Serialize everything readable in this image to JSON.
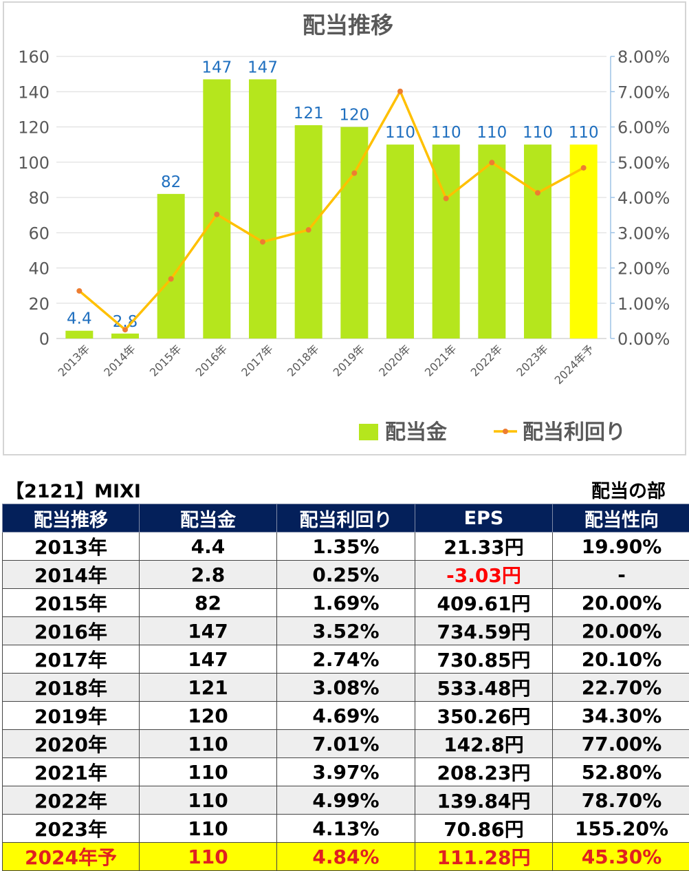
{
  "chart_data": {
    "type": "bar",
    "title": "配当推移",
    "categories": [
      "2013年",
      "2014年",
      "2015年",
      "2016年",
      "2017年",
      "2018年",
      "2019年",
      "2020年",
      "2021年",
      "2022年",
      "2023年",
      "2024年予"
    ],
    "series": [
      {
        "name": "配当金",
        "type": "bar",
        "axis": "left",
        "values": [
          4.4,
          2.8,
          82,
          147,
          147,
          121,
          120,
          110,
          110,
          110,
          110,
          110
        ],
        "labels": [
          "4.4",
          "2.8",
          "82",
          "147",
          "147",
          "121",
          "120",
          "110",
          "110",
          "110",
          "110",
          "110"
        ],
        "color": "#b5e61d",
        "forecast_color": "#ffff00"
      },
      {
        "name": "配当利回り",
        "type": "line",
        "axis": "right",
        "values": [
          1.35,
          0.25,
          1.69,
          3.52,
          2.74,
          3.08,
          4.69,
          7.01,
          3.97,
          4.99,
          4.13,
          4.84
        ],
        "color": "#ffc000",
        "marker_color": "#ed7d31"
      }
    ],
    "y_left": {
      "min": 0,
      "max": 160,
      "ticks": [
        "0",
        "20",
        "40",
        "60",
        "80",
        "100",
        "120",
        "140",
        "160"
      ]
    },
    "y_right": {
      "min": 0,
      "max": 8,
      "ticks": [
        "0.00%",
        "1.00%",
        "2.00%",
        "3.00%",
        "4.00%",
        "5.00%",
        "6.00%",
        "7.00%",
        "8.00%"
      ]
    },
    "grid": true,
    "legend": "bottom-right",
    "label_color": "#1f6fbf"
  },
  "company": "【2121】MIXI",
  "section": "配当の部",
  "table": {
    "headers": [
      "配当推移",
      "配当金",
      "配当利回り",
      "EPS",
      "配当性向"
    ],
    "rows": [
      [
        "2013年",
        "4.4",
        "1.35%",
        "21.33円",
        "19.90%"
      ],
      [
        "2014年",
        "2.8",
        "0.25%",
        "-3.03円",
        "-"
      ],
      [
        "2015年",
        "82",
        "1.69%",
        "409.61円",
        "20.00%"
      ],
      [
        "2016年",
        "147",
        "3.52%",
        "734.59円",
        "20.00%"
      ],
      [
        "2017年",
        "147",
        "2.74%",
        "730.85円",
        "20.10%"
      ],
      [
        "2018年",
        "121",
        "3.08%",
        "533.48円",
        "22.70%"
      ],
      [
        "2019年",
        "120",
        "4.69%",
        "350.26円",
        "34.30%"
      ],
      [
        "2020年",
        "110",
        "7.01%",
        "142.8円",
        "77.00%"
      ],
      [
        "2021年",
        "110",
        "3.97%",
        "208.23円",
        "52.80%"
      ],
      [
        "2022年",
        "110",
        "4.99%",
        "139.84円",
        "78.70%"
      ],
      [
        "2023年",
        "110",
        "4.13%",
        "70.86円",
        "155.20%"
      ],
      [
        "2024年予",
        "110",
        "4.84%",
        "111.28円",
        "45.30%"
      ]
    ],
    "colors": {
      "header_bg": "#04205a",
      "forecast_bg": "#ffff00",
      "forecast_text": "#e02020",
      "negative_text": "#ff0000"
    }
  }
}
